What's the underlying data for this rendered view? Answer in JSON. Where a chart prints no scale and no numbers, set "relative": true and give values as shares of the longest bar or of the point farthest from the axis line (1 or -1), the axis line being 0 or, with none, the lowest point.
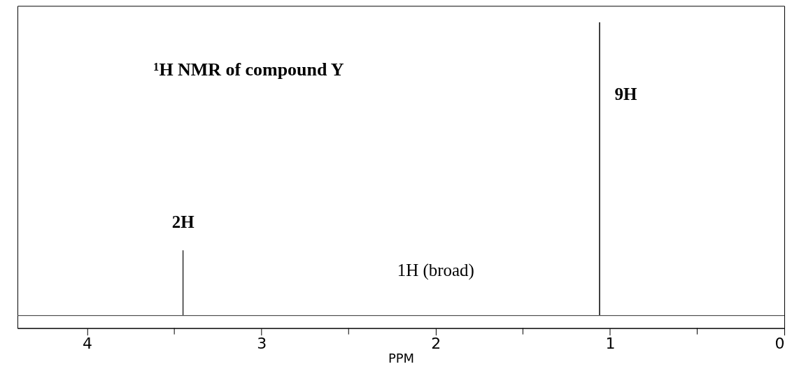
{
  "chart_data": {
    "type": "line",
    "relative": true,
    "title": "¹H NMR of compound Y",
    "xlabel": "PPM",
    "x": [
      4.4,
      3.45,
      3.45,
      3.45,
      1.06,
      1.06,
      1.06,
      0
    ],
    "series": [
      {
        "color": "#000000",
        "values": [
          0,
          0,
          0.222,
          0,
          0,
          1,
          0,
          0
        ]
      }
    ],
    "xlim": [
      4.4,
      0
    ],
    "xticks": [
      4,
      3,
      2,
      1,
      0
    ],
    "annotations": [
      {
        "text": "2H",
        "x": 3.45,
        "y": 0.222
      },
      "9H",
      {
        "text": "1H (broad)",
        "x": 2.0,
        "y": 0
      }
    ],
    "grid": false,
    "marker": "none",
    "line_style": "solid"
  }
}
